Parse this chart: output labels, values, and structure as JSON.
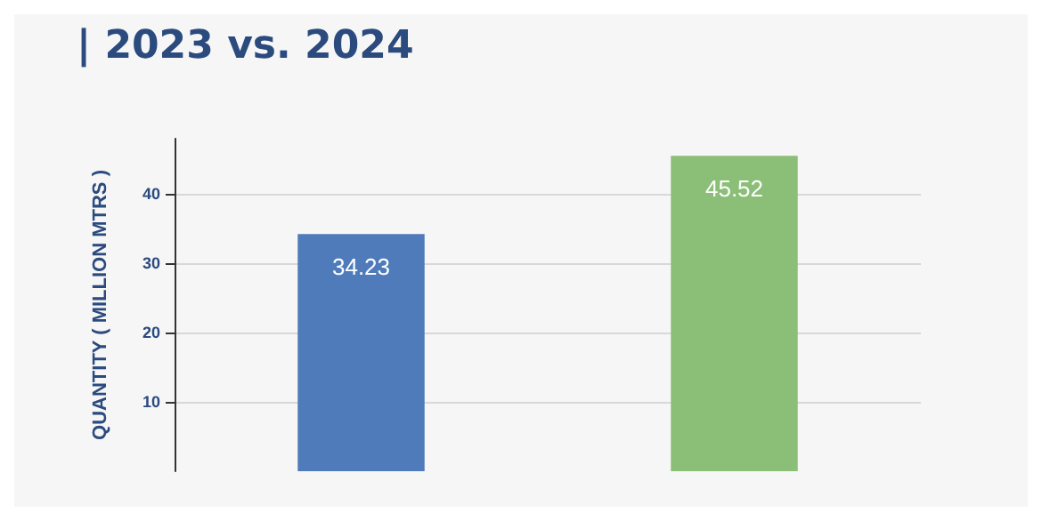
{
  "chart_data": {
    "type": "bar",
    "title": "| 2023 vs. 2024",
    "ylabel": "QUANTITY ( MILLION MTRS )",
    "categories": [
      null,
      null
    ],
    "values": [
      34.23,
      45.52
    ],
    "colors": [
      "#4f7bbb",
      "#8bbe77"
    ],
    "ylim": [
      0,
      48
    ],
    "yticks": [
      10,
      20,
      30,
      40
    ],
    "grid": "y",
    "data_labels": true
  }
}
